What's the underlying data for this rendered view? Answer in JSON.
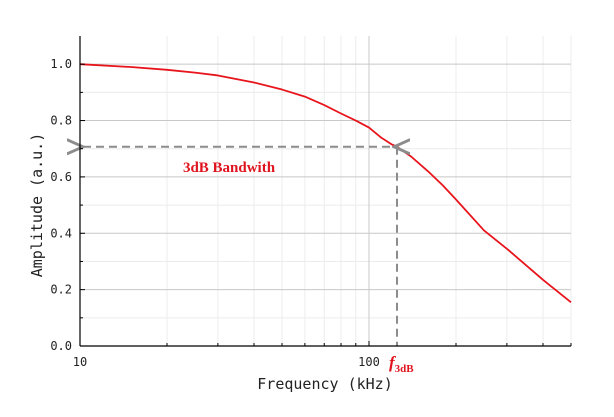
{
  "chart_data": {
    "type": "line",
    "title": "",
    "xlabel": "Frequency (kHz)",
    "ylabel": "Amplitude (a.u.)",
    "x_scale": "log",
    "xlim": [
      10,
      500
    ],
    "ylim": [
      0,
      1.1
    ],
    "x_ticks": [
      {
        "value": 10,
        "label": "10"
      },
      {
        "value": 100,
        "label": "100"
      }
    ],
    "y_ticks": [
      {
        "value": 0.0,
        "label": "0.0"
      },
      {
        "value": 0.2,
        "label": "0.2"
      },
      {
        "value": 0.4,
        "label": "0.4"
      },
      {
        "value": 0.6,
        "label": "0.6"
      },
      {
        "value": 0.8,
        "label": "0.8"
      },
      {
        "value": 1.0,
        "label": "1.0"
      }
    ],
    "grid": true,
    "legend": "none",
    "series": [
      {
        "color": "#e8141c",
        "x": [
          10,
          15,
          20,
          25,
          30,
          40,
          50,
          60,
          70,
          80,
          90,
          100,
          110,
          120,
          125,
          140,
          160,
          180,
          200,
          250,
          300,
          400,
          500
        ],
        "y": [
          1.0,
          0.99,
          0.98,
          0.97,
          0.96,
          0.935,
          0.91,
          0.885,
          0.855,
          0.825,
          0.8,
          0.775,
          0.74,
          0.715,
          0.707,
          0.672,
          0.62,
          0.57,
          0.52,
          0.41,
          0.345,
          0.235,
          0.155
        ]
      }
    ],
    "annotations": {
      "bandwidth_text": "3dB Bandwith",
      "cutoff_label_main": "f",
      "cutoff_label_sub": "3dB",
      "cutoff_x": 125,
      "cutoff_y": 0.707,
      "marker_color": "#8c8c8c",
      "text_color": "#e0141e"
    }
  }
}
